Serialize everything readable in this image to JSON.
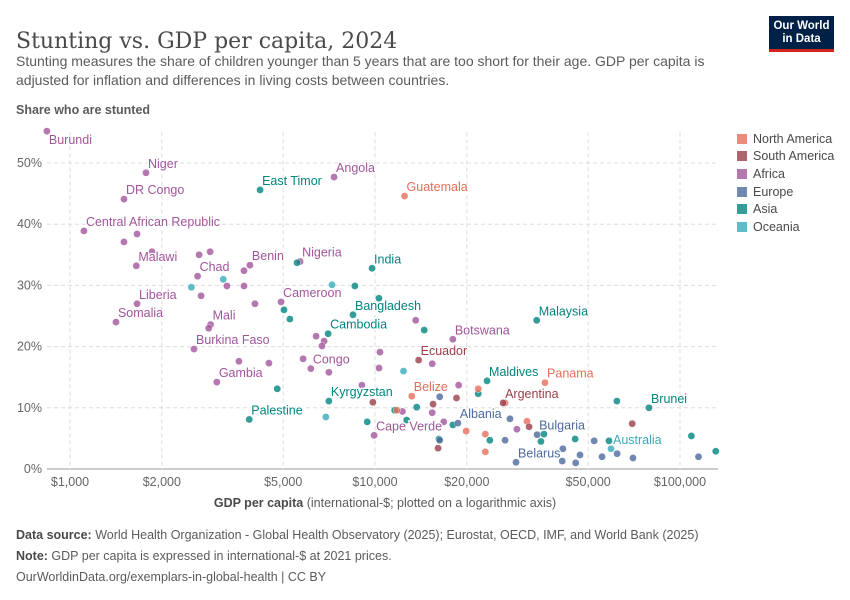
{
  "header": {
    "title": "Stunting vs. GDP per capita, 2024",
    "subtitle": "Stunting measures the share of children younger than 5 years that are too short for their age. GDP per capita is adjusted for inflation and differences in living costs between countries.",
    "logo_text": "Our World in Data"
  },
  "footer": {
    "source_label": "Data source:",
    "source": " World Health Organization - Global Health Observatory (2025); Eurostat, OECD, IMF, and World Bank (2025)",
    "note_label": "Note:",
    "note": " GDP per capita is expressed in international-$ at 2021 prices.",
    "url": "OurWorldinData.org/exemplars-in-global-health | CC BY"
  },
  "chart_data": {
    "type": "scatter",
    "title": "Stunting vs. GDP per capita, 2024",
    "ylabel": "Share who are stunted",
    "xlabel_bold": "GDP per capita",
    "xlabel_rest": " (international-$; plotted on a logarithmic axis)",
    "x_scale": "log",
    "xlim": [
      850,
      140000
    ],
    "ylim": [
      0,
      55
    ],
    "grid": true,
    "legend_placement": "right",
    "x_ticks": [
      {
        "v": 1000,
        "label": "$1,000"
      },
      {
        "v": 2000,
        "label": "$2,000"
      },
      {
        "v": 5000,
        "label": "$5,000"
      },
      {
        "v": 10000,
        "label": "$10,000"
      },
      {
        "v": 20000,
        "label": "$20,000"
      },
      {
        "v": 50000,
        "label": "$50,000"
      },
      {
        "v": 100000,
        "label": "$100,000"
      }
    ],
    "y_ticks": [
      {
        "v": 0,
        "label": "0%"
      },
      {
        "v": 10,
        "label": "10%"
      },
      {
        "v": 20,
        "label": "20%"
      },
      {
        "v": 30,
        "label": "30%"
      },
      {
        "v": 40,
        "label": "40%"
      },
      {
        "v": 50,
        "label": "50%"
      }
    ],
    "legend": [
      {
        "name": "North America",
        "color": "#e56e5a"
      },
      {
        "name": "South America",
        "color": "#9a3e4a"
      },
      {
        "name": "Africa",
        "color": "#a2559c"
      },
      {
        "name": "Europe",
        "color": "#4c6a9c"
      },
      {
        "name": "Asia",
        "color": "#00847e"
      },
      {
        "name": "Oceania",
        "color": "#38aaba"
      }
    ],
    "points": [
      {
        "r": "Africa",
        "x": 840,
        "y": 55.2,
        "label": "Burundi"
      },
      {
        "r": "Africa",
        "x": 1775,
        "y": 48.4,
        "label": "Niger"
      },
      {
        "r": "Africa",
        "x": 1503,
        "y": 44.1,
        "label": "DR Congo"
      },
      {
        "r": "Africa",
        "x": 1111,
        "y": 38.9,
        "label": "Central African Republic"
      },
      {
        "r": "Africa",
        "x": 1503,
        "y": 37.1
      },
      {
        "r": "Africa",
        "x": 1659,
        "y": 38.4
      },
      {
        "r": "Africa",
        "x": 1858,
        "y": 35.5
      },
      {
        "r": "Africa",
        "x": 1650,
        "y": 33.2,
        "label": "Malawi"
      },
      {
        "r": "Africa",
        "x": 2650,
        "y": 35.0
      },
      {
        "r": "Africa",
        "x": 2880,
        "y": 35.5
      },
      {
        "r": "Africa",
        "x": 2620,
        "y": 31.5,
        "label": "Chad"
      },
      {
        "r": "Africa",
        "x": 3270,
        "y": 29.9
      },
      {
        "r": "Africa",
        "x": 3720,
        "y": 29.9
      },
      {
        "r": "Africa",
        "x": 3720,
        "y": 32.4
      },
      {
        "r": "Africa",
        "x": 3890,
        "y": 33.3,
        "label": "Benin"
      },
      {
        "r": "Africa",
        "x": 2690,
        "y": 28.3
      },
      {
        "r": "Africa",
        "x": 4040,
        "y": 27.0
      },
      {
        "r": "Africa",
        "x": 4920,
        "y": 27.3,
        "label": "Cameroon"
      },
      {
        "r": "Africa",
        "x": 5680,
        "y": 33.9,
        "label": "Nigeria"
      },
      {
        "r": "Africa",
        "x": 1659,
        "y": 27.0,
        "label": "Liberia"
      },
      {
        "r": "Africa",
        "x": 1415,
        "y": 24.0,
        "label": "Somalia"
      },
      {
        "r": "Africa",
        "x": 2890,
        "y": 23.6,
        "label": "Mali"
      },
      {
        "r": "Africa",
        "x": 2850,
        "y": 23.0
      },
      {
        "r": "Africa",
        "x": 2550,
        "y": 19.6,
        "label": "Burkina Faso"
      },
      {
        "r": "Africa",
        "x": 3580,
        "y": 17.6
      },
      {
        "r": "Africa",
        "x": 4490,
        "y": 17.3
      },
      {
        "r": "Africa",
        "x": 3030,
        "y": 14.2,
        "label": "Gambia"
      },
      {
        "r": "Africa",
        "x": 6410,
        "y": 21.7
      },
      {
        "r": "Africa",
        "x": 6810,
        "y": 20.9
      },
      {
        "r": "Africa",
        "x": 6700,
        "y": 20.1
      },
      {
        "r": "Africa",
        "x": 5810,
        "y": 18.0
      },
      {
        "r": "Africa",
        "x": 6160,
        "y": 16.4,
        "label": "Congo"
      },
      {
        "r": "Africa",
        "x": 7060,
        "y": 15.8
      },
      {
        "r": "Africa",
        "x": 9060,
        "y": 13.7
      },
      {
        "r": "Africa",
        "x": 7340,
        "y": 47.7,
        "label": "Angola"
      },
      {
        "r": "Africa",
        "x": 10380,
        "y": 19.1
      },
      {
        "r": "Africa",
        "x": 10310,
        "y": 16.5
      },
      {
        "r": "Africa",
        "x": 9930,
        "y": 5.5,
        "label": "Cape Verde"
      },
      {
        "r": "Africa",
        "x": 18000,
        "y": 21.2,
        "label": "Botswana"
      },
      {
        "r": "Africa",
        "x": 13600,
        "y": 24.3
      },
      {
        "r": "Africa",
        "x": 15400,
        "y": 17.2
      },
      {
        "r": "Africa",
        "x": 18800,
        "y": 13.7
      },
      {
        "r": "Africa",
        "x": 15400,
        "y": 9.2
      },
      {
        "r": "Africa",
        "x": 12300,
        "y": 9.4
      },
      {
        "r": "Africa",
        "x": 16800,
        "y": 7.7
      },
      {
        "r": "Africa",
        "x": 29200,
        "y": 6.5
      },
      {
        "r": "Asia",
        "x": 4200,
        "y": 45.6,
        "label": "East Timor"
      },
      {
        "r": "Asia",
        "x": 5550,
        "y": 33.7
      },
      {
        "r": "Asia",
        "x": 9780,
        "y": 32.8,
        "label": "India"
      },
      {
        "r": "Asia",
        "x": 8590,
        "y": 29.9
      },
      {
        "r": "Asia",
        "x": 10300,
        "y": 27.9
      },
      {
        "r": "Asia",
        "x": 8470,
        "y": 25.2,
        "label": "Bangladesh"
      },
      {
        "r": "Asia",
        "x": 5030,
        "y": 26.0
      },
      {
        "r": "Asia",
        "x": 5260,
        "y": 24.5
      },
      {
        "r": "Asia",
        "x": 7020,
        "y": 22.1,
        "label": "Cambodia"
      },
      {
        "r": "Asia",
        "x": 14500,
        "y": 22.7
      },
      {
        "r": "Asia",
        "x": 33900,
        "y": 24.3,
        "label": "Malaysia"
      },
      {
        "r": "Asia",
        "x": 3870,
        "y": 8.1,
        "label": "Palestine"
      },
      {
        "r": "Asia",
        "x": 4780,
        "y": 13.1
      },
      {
        "r": "Asia",
        "x": 7060,
        "y": 11.1,
        "label": "Kyrgyzstan"
      },
      {
        "r": "Asia",
        "x": 9430,
        "y": 7.7
      },
      {
        "r": "Asia",
        "x": 23300,
        "y": 14.4,
        "label": "Maldives"
      },
      {
        "r": "Asia",
        "x": 21800,
        "y": 12.3
      },
      {
        "r": "Asia",
        "x": 13700,
        "y": 10.1
      },
      {
        "r": "Asia",
        "x": 12700,
        "y": 8.0
      },
      {
        "r": "Asia",
        "x": 11600,
        "y": 9.6
      },
      {
        "r": "Asia",
        "x": 18000,
        "y": 7.2
      },
      {
        "r": "Asia",
        "x": 16200,
        "y": 4.9
      },
      {
        "r": "Asia",
        "x": 23800,
        "y": 4.7
      },
      {
        "r": "Asia",
        "x": 35800,
        "y": 5.7
      },
      {
        "r": "Asia",
        "x": 35000,
        "y": 4.5
      },
      {
        "r": "Asia",
        "x": 79100,
        "y": 10.0,
        "label": "Brunei"
      },
      {
        "r": "Asia",
        "x": 62100,
        "y": 11.1
      },
      {
        "r": "Asia",
        "x": 58500,
        "y": 4.6
      },
      {
        "r": "Asia",
        "x": 45300,
        "y": 4.9
      },
      {
        "r": "Asia",
        "x": 109000,
        "y": 5.4
      },
      {
        "r": "Asia",
        "x": 131000,
        "y": 2.9
      },
      {
        "r": "North America",
        "x": 12500,
        "y": 44.6,
        "label": "Guatemala"
      },
      {
        "r": "North America",
        "x": 36100,
        "y": 14.1,
        "label": "Panama"
      },
      {
        "r": "North America",
        "x": 13200,
        "y": 11.9,
        "label": "Belize"
      },
      {
        "r": "North America",
        "x": 11800,
        "y": 9.6
      },
      {
        "r": "North America",
        "x": 21800,
        "y": 13.1
      },
      {
        "r": "North America",
        "x": 26700,
        "y": 10.8
      },
      {
        "r": "North America",
        "x": 31500,
        "y": 7.8
      },
      {
        "r": "North America",
        "x": 19900,
        "y": 6.2
      },
      {
        "r": "North America",
        "x": 23000,
        "y": 5.7
      },
      {
        "r": "North America",
        "x": 23000,
        "y": 2.8
      },
      {
        "r": "South America",
        "x": 13900,
        "y": 17.8,
        "label": "Ecuador"
      },
      {
        "r": "South America",
        "x": 26300,
        "y": 10.8,
        "label": "Argentina"
      },
      {
        "r": "South America",
        "x": 9840,
        "y": 10.9
      },
      {
        "r": "South America",
        "x": 15500,
        "y": 10.6
      },
      {
        "r": "South America",
        "x": 18500,
        "y": 11.6
      },
      {
        "r": "South America",
        "x": 32000,
        "y": 6.9
      },
      {
        "r": "South America",
        "x": 69700,
        "y": 7.4
      },
      {
        "r": "South America",
        "x": 16100,
        "y": 3.4
      },
      {
        "r": "Europe",
        "x": 18700,
        "y": 7.5,
        "label": "Albania"
      },
      {
        "r": "Europe",
        "x": 16300,
        "y": 11.8
      },
      {
        "r": "Europe",
        "x": 27700,
        "y": 8.2
      },
      {
        "r": "Europe",
        "x": 34000,
        "y": 5.6,
        "label": "Bulgaria"
      },
      {
        "r": "Europe",
        "x": 26700,
        "y": 4.7
      },
      {
        "r": "Europe",
        "x": 16300,
        "y": 4.7
      },
      {
        "r": "Europe",
        "x": 29000,
        "y": 1.1,
        "label": "Belarus"
      },
      {
        "r": "Europe",
        "x": 41300,
        "y": 3.3
      },
      {
        "r": "Europe",
        "x": 41100,
        "y": 1.3
      },
      {
        "r": "Europe",
        "x": 47000,
        "y": 2.3
      },
      {
        "r": "Europe",
        "x": 45500,
        "y": 1.0
      },
      {
        "r": "Europe",
        "x": 52300,
        "y": 4.6
      },
      {
        "r": "Europe",
        "x": 55500,
        "y": 2.0
      },
      {
        "r": "Europe",
        "x": 62200,
        "y": 2.5
      },
      {
        "r": "Europe",
        "x": 70100,
        "y": 1.8
      },
      {
        "r": "Europe",
        "x": 115000,
        "y": 2.0
      },
      {
        "r": "Oceania",
        "x": 2500,
        "y": 29.7
      },
      {
        "r": "Oceania",
        "x": 3180,
        "y": 31.0
      },
      {
        "r": "Oceania",
        "x": 7230,
        "y": 30.1
      },
      {
        "r": "Oceania",
        "x": 6900,
        "y": 8.5
      },
      {
        "r": "Oceania",
        "x": 12400,
        "y": 16.0
      },
      {
        "r": "Oceania",
        "x": 59400,
        "y": 3.3,
        "label": "Australia"
      }
    ]
  }
}
